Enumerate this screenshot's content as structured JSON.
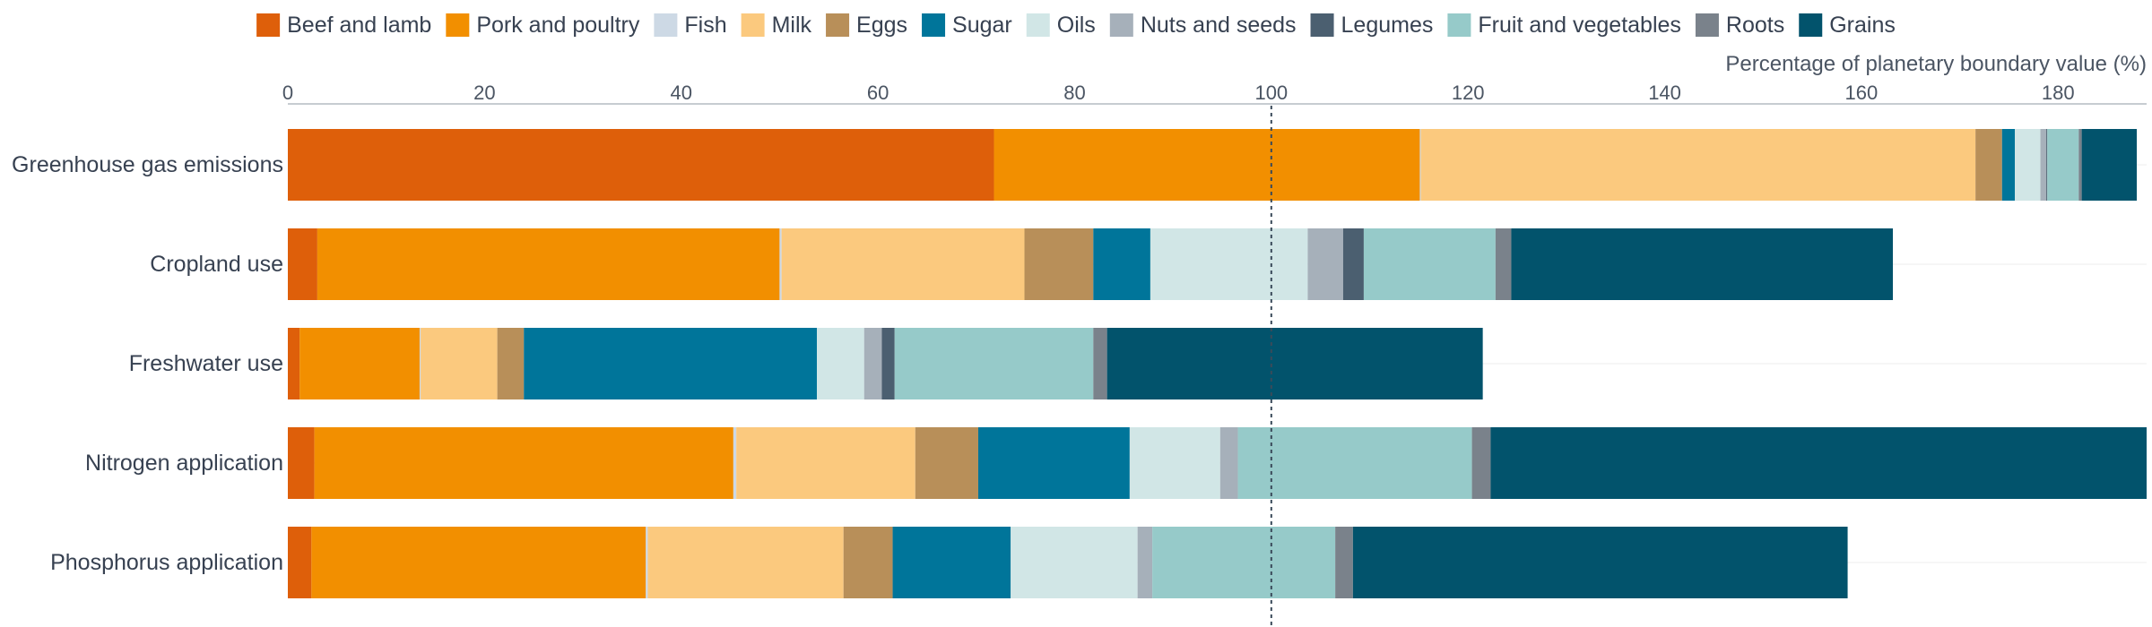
{
  "chart_data": {
    "type": "bar",
    "orientation": "horizontal",
    "stacked": true,
    "xlabel": "Percentage of planetary boundary value (%)",
    "xlim": [
      0,
      189
    ],
    "xticks": [
      0,
      20,
      40,
      60,
      80,
      100,
      120,
      140,
      160,
      180
    ],
    "reference_line": 100,
    "legend_position": "top",
    "categories": [
      "Greenhouse gas emissions",
      "Cropland use",
      "Freshwater use",
      "Nitrogen application",
      "Phosphorus application"
    ],
    "series": [
      {
        "name": "Beef and lamb",
        "color": "#de5f0a",
        "values": [
          71.8,
          3.0,
          1.2,
          2.7,
          2.4
        ]
      },
      {
        "name": "Pork and poultry",
        "color": "#f28f00",
        "values": [
          43.3,
          47.0,
          12.2,
          42.6,
          34.0
        ]
      },
      {
        "name": "Fish",
        "color": "#cdd9e5",
        "values": [
          0.1,
          0.2,
          0.1,
          0.3,
          0.2
        ]
      },
      {
        "name": "Milk",
        "color": "#fbc97e",
        "values": [
          56.4,
          24.7,
          7.8,
          18.2,
          19.9
        ]
      },
      {
        "name": "Eggs",
        "color": "#b88f59",
        "values": [
          2.7,
          7.0,
          2.7,
          6.4,
          5.0
        ]
      },
      {
        "name": "Sugar",
        "color": "#00759a",
        "values": [
          1.3,
          5.8,
          29.8,
          15.4,
          12.0
        ]
      },
      {
        "name": "Oils",
        "color": "#d1e6e6",
        "values": [
          2.6,
          16.0,
          4.8,
          9.2,
          12.9
        ]
      },
      {
        "name": "Nuts and seeds",
        "color": "#a6b0ba",
        "values": [
          0.6,
          3.6,
          1.8,
          1.8,
          1.5
        ]
      },
      {
        "name": "Legumes",
        "color": "#4b5f70",
        "values": [
          0.1,
          2.1,
          1.3,
          0.0,
          0.0
        ]
      },
      {
        "name": "Fruit and vegetables",
        "color": "#96cac9",
        "values": [
          3.2,
          13.4,
          20.2,
          23.8,
          18.6
        ]
      },
      {
        "name": "Roots",
        "color": "#7a828b",
        "values": [
          0.3,
          1.6,
          1.4,
          1.9,
          1.8
        ]
      },
      {
        "name": "Grains",
        "color": "#02536c",
        "values": [
          5.6,
          38.8,
          38.2,
          67.0,
          50.3
        ]
      }
    ]
  }
}
